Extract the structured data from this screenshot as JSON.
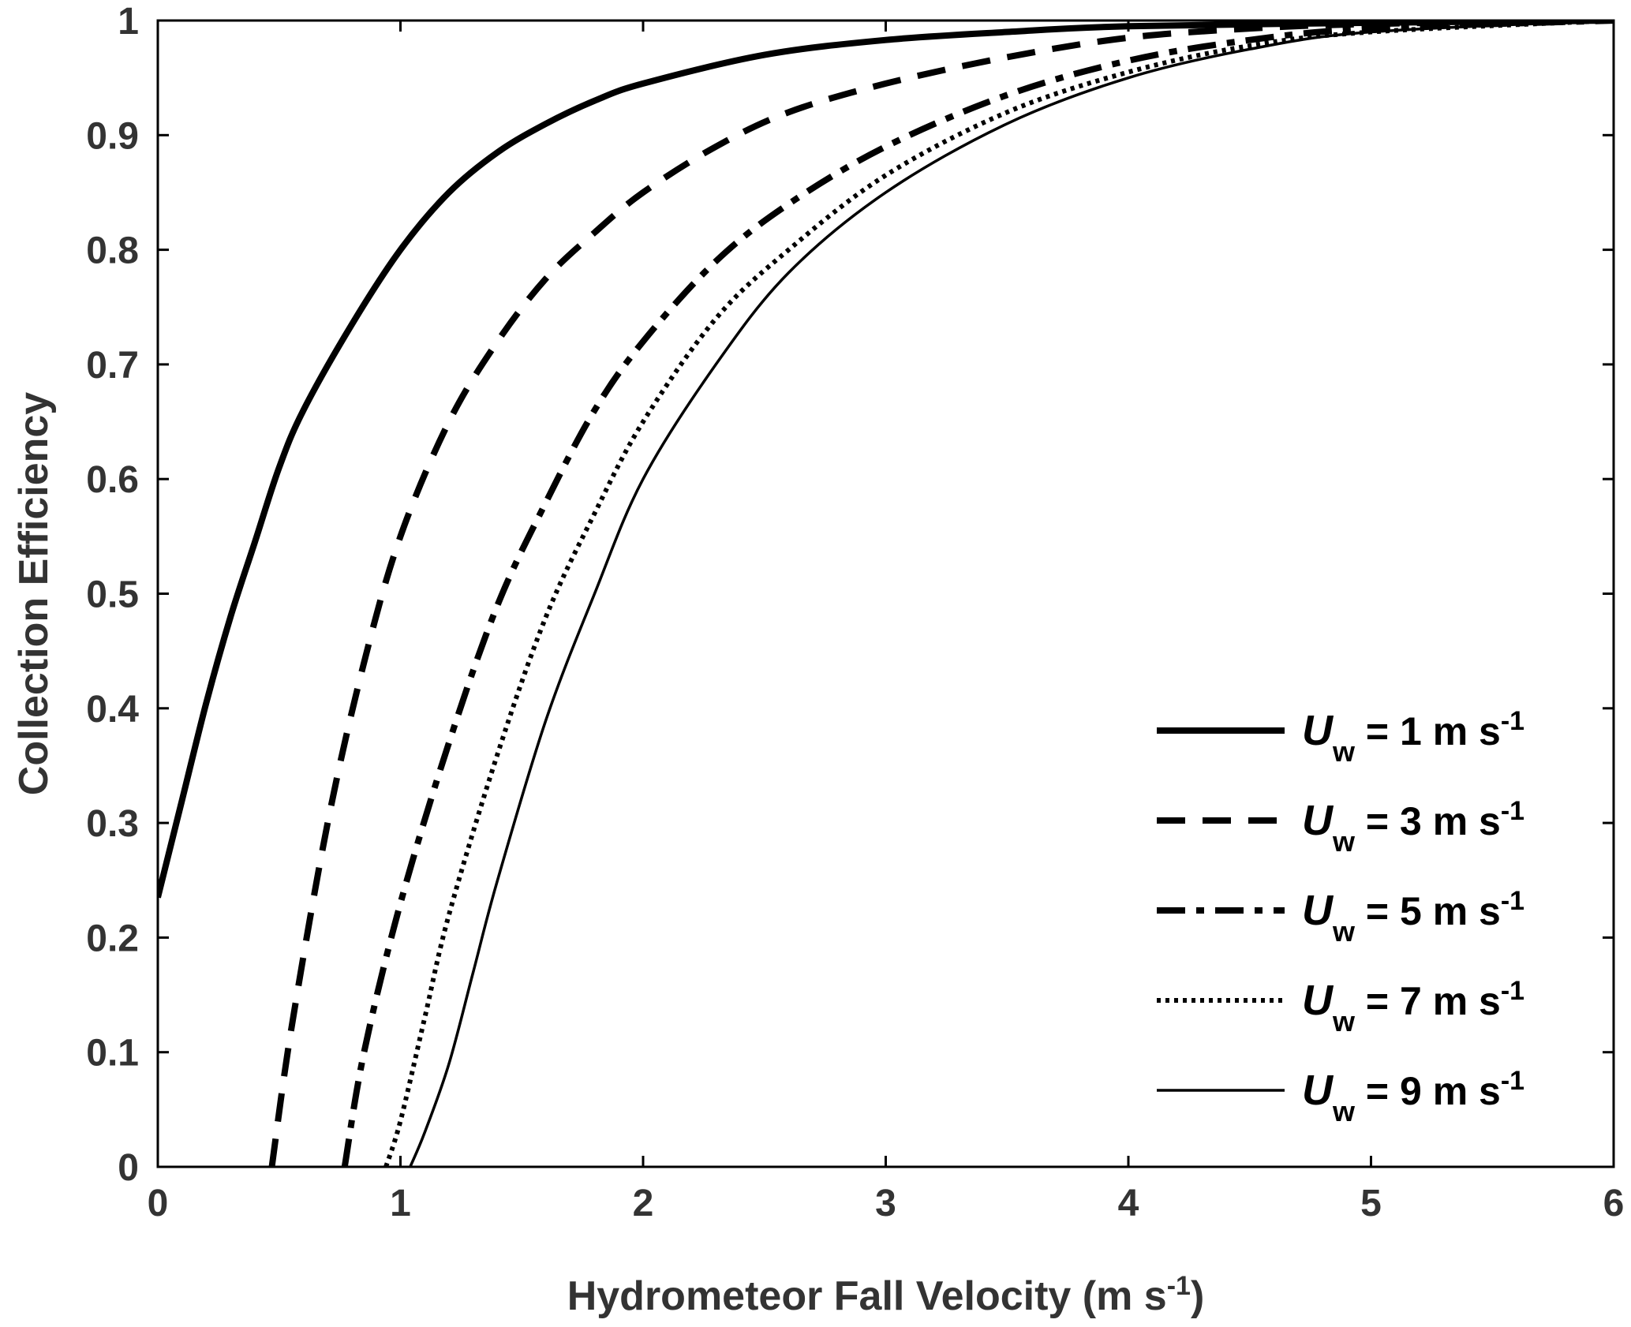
{
  "chart_data": {
    "type": "line",
    "title": "",
    "xlabel": "Hydrometeor Fall Velocity (m s",
    "xlabel_sup": "-1",
    "xlabel_suffix": ")",
    "ylabel": "Collection Efficiency",
    "xlim": [
      0,
      6
    ],
    "ylim": [
      0,
      1
    ],
    "xticks": [
      "0",
      "1",
      "2",
      "3",
      "4",
      "5",
      "6"
    ],
    "yticks": [
      "0",
      "0.1",
      "0.2",
      "0.3",
      "0.4",
      "0.5",
      "0.6",
      "0.7",
      "0.8",
      "0.9",
      "1"
    ],
    "grid": false,
    "legend_position": "lower-right",
    "colors": {
      "line": "#000000",
      "text": "#333333",
      "axes": "#000000"
    },
    "series": [
      {
        "name": "U",
        "name_sub": "w",
        "name_suffix": " = 1 m s",
        "name_sup": "-1",
        "style": "solid-thick",
        "x": [
          0,
          0.1,
          0.2,
          0.3,
          0.4,
          0.5,
          0.6,
          0.8,
          1.0,
          1.2,
          1.4,
          1.6,
          1.8,
          2.0,
          2.5,
          3.0,
          3.5,
          4.0,
          5.0,
          6.0
        ],
        "y": [
          0.235,
          0.32,
          0.405,
          0.48,
          0.545,
          0.61,
          0.66,
          0.735,
          0.8,
          0.85,
          0.885,
          0.91,
          0.93,
          0.945,
          0.97,
          0.983,
          0.99,
          0.995,
          0.998,
          1.0
        ]
      },
      {
        "name": "U",
        "name_sub": "w",
        "name_suffix": " = 3 m s",
        "name_sup": "-1",
        "style": "dashed",
        "x": [
          0.47,
          0.55,
          0.7,
          0.85,
          1.0,
          1.2,
          1.4,
          1.6,
          1.8,
          2.0,
          2.3,
          2.6,
          3.0,
          3.5,
          4.0,
          4.5,
          5.0,
          6.0
        ],
        "y": [
          0.0,
          0.12,
          0.3,
          0.44,
          0.55,
          0.65,
          0.72,
          0.775,
          0.815,
          0.85,
          0.89,
          0.92,
          0.945,
          0.968,
          0.985,
          0.993,
          0.997,
          1.0
        ]
      },
      {
        "name": "U",
        "name_sub": "w",
        "name_suffix": " = 5 m s",
        "name_sup": "-1",
        "style": "dashdot",
        "x": [
          0.77,
          0.85,
          1.0,
          1.2,
          1.4,
          1.6,
          1.8,
          2.0,
          2.3,
          2.6,
          3.0,
          3.5,
          4.0,
          4.5,
          5.0,
          6.0
        ],
        "y": [
          0.0,
          0.1,
          0.23,
          0.37,
          0.49,
          0.58,
          0.66,
          0.72,
          0.79,
          0.84,
          0.89,
          0.935,
          0.965,
          0.983,
          0.993,
          1.0
        ]
      },
      {
        "name": "U",
        "name_sub": "w",
        "name_suffix": " = 7 m s",
        "name_sup": "-1",
        "style": "dotted",
        "x": [
          0.94,
          1.0,
          1.1,
          1.2,
          1.4,
          1.6,
          1.8,
          2.0,
          2.3,
          2.6,
          3.0,
          3.5,
          4.0,
          4.5,
          5.0,
          6.0
        ],
        "y": [
          0.0,
          0.04,
          0.13,
          0.22,
          0.36,
          0.48,
          0.57,
          0.65,
          0.74,
          0.8,
          0.865,
          0.92,
          0.955,
          0.978,
          0.99,
          1.0
        ]
      },
      {
        "name": "U",
        "name_sub": "w",
        "name_suffix": " = 9 m s",
        "name_sup": "-1",
        "style": "solid-thin",
        "x": [
          1.04,
          1.1,
          1.2,
          1.3,
          1.4,
          1.6,
          1.8,
          2.0,
          2.3,
          2.6,
          3.0,
          3.5,
          4.0,
          4.5,
          5.0,
          6.0
        ],
        "y": [
          0.0,
          0.03,
          0.09,
          0.17,
          0.25,
          0.39,
          0.5,
          0.6,
          0.7,
          0.78,
          0.85,
          0.91,
          0.95,
          0.975,
          0.99,
          1.0
        ]
      }
    ]
  }
}
